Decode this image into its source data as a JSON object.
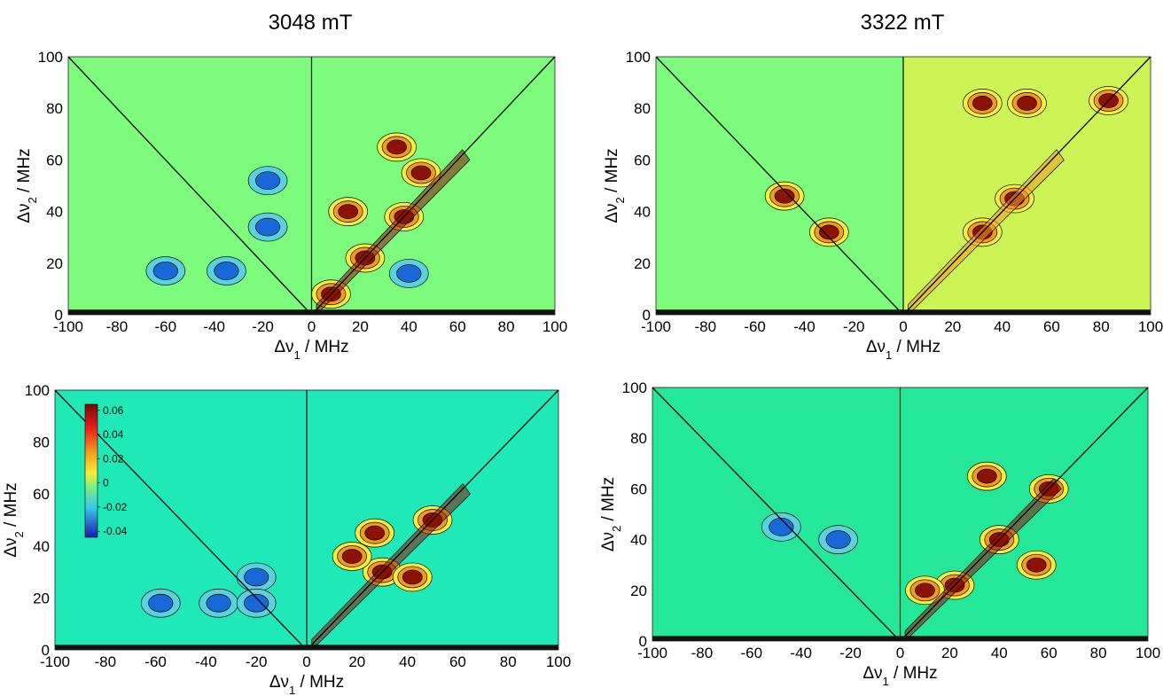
{
  "titles": {
    "left": "3048 mT",
    "right": "3322 mT"
  },
  "axis_labels": {
    "x_prefix": "Δν",
    "x_sub": "1",
    "x_suffix": " / MHz",
    "y_prefix": "Δν",
    "y_sub": "2",
    "y_suffix": " / MHz"
  },
  "colors": {
    "bg_a": "#7dfb7d",
    "bg_b": "#ccf455",
    "bg_c": "#1fe9b9",
    "bg_d": "#24e79a",
    "pos_low": "#f5ef3a",
    "pos_mid": "#f29b22",
    "pos_high": "#8c1206",
    "neg_low": "#5ad2de",
    "neg_high": "#1869d8",
    "contour": "#0a0a0a"
  },
  "chart_data": [
    {
      "id": "top-left",
      "type": "contour",
      "title": "3048 mT",
      "xlabel": "Δν1 / MHz",
      "ylabel": "Δν2 / MHz",
      "xlim": [
        -100,
        100
      ],
      "ylim": [
        0,
        100
      ],
      "xticks": [
        -100,
        -80,
        -60,
        -40,
        -20,
        0,
        20,
        40,
        60,
        80,
        100
      ],
      "yticks": [
        0,
        20,
        40,
        60,
        80,
        100
      ],
      "diagonals": true,
      "peaks": [
        {
          "x": 22,
          "y": 22,
          "sign": "positive"
        },
        {
          "x": 38,
          "y": 38,
          "sign": "positive"
        },
        {
          "x": 8,
          "y": 8,
          "sign": "positive"
        },
        {
          "x": 15,
          "y": 40,
          "sign": "positive"
        },
        {
          "x": 45,
          "y": 55,
          "sign": "positive"
        },
        {
          "x": 35,
          "y": 65,
          "sign": "positive"
        },
        {
          "x": -18,
          "y": 52,
          "sign": "negative"
        },
        {
          "x": -18,
          "y": 34,
          "sign": "negative"
        },
        {
          "x": -35,
          "y": 17,
          "sign": "negative"
        },
        {
          "x": -60,
          "y": 17,
          "sign": "negative"
        },
        {
          "x": 40,
          "y": 16,
          "sign": "negative"
        }
      ]
    },
    {
      "id": "top-right",
      "type": "contour",
      "title": "3322 mT",
      "xlabel": "Δν1 / MHz",
      "ylabel": "Δν2 / MHz",
      "xlim": [
        -100,
        100
      ],
      "ylim": [
        0,
        100
      ],
      "xticks": [
        -100,
        -80,
        -60,
        -40,
        -20,
        0,
        20,
        40,
        60,
        80,
        100
      ],
      "yticks": [
        0,
        20,
        40,
        60,
        80,
        100
      ],
      "diagonals": true,
      "peaks": [
        {
          "x": 32,
          "y": 32,
          "sign": "positive"
        },
        {
          "x": 45,
          "y": 45,
          "sign": "positive"
        },
        {
          "x": 32,
          "y": 82,
          "sign": "positive"
        },
        {
          "x": 50,
          "y": 82,
          "sign": "positive"
        },
        {
          "x": 83,
          "y": 83,
          "sign": "positive"
        },
        {
          "x": -30,
          "y": 32,
          "sign": "positive"
        },
        {
          "x": -48,
          "y": 46,
          "sign": "positive"
        }
      ]
    },
    {
      "id": "bottom-left",
      "type": "contour",
      "xlabel": "Δν1 / MHz",
      "ylabel": "Δν2 / MHz",
      "xlim": [
        -100,
        100
      ],
      "ylim": [
        0,
        100
      ],
      "xticks": [
        -100,
        -80,
        -60,
        -40,
        -20,
        0,
        20,
        40,
        60,
        80,
        100
      ],
      "yticks": [
        0,
        20,
        40,
        60,
        80,
        100
      ],
      "diagonals": true,
      "colorbar": {
        "min": -0.045,
        "max": 0.065,
        "ticks": [
          0.06,
          0.04,
          0.02,
          0,
          -0.02,
          -0.04
        ],
        "tick_labels": [
          "0.06",
          "0.04",
          "0.02",
          "0",
          "-0.02",
          "-0.04"
        ]
      },
      "peaks": [
        {
          "x": 30,
          "y": 30,
          "sign": "positive"
        },
        {
          "x": 50,
          "y": 50,
          "sign": "positive"
        },
        {
          "x": 27,
          "y": 45,
          "sign": "positive"
        },
        {
          "x": 18,
          "y": 36,
          "sign": "positive"
        },
        {
          "x": 42,
          "y": 28,
          "sign": "positive"
        },
        {
          "x": -58,
          "y": 18,
          "sign": "negative"
        },
        {
          "x": -35,
          "y": 18,
          "sign": "negative"
        },
        {
          "x": -20,
          "y": 28,
          "sign": "negative"
        },
        {
          "x": -20,
          "y": 18,
          "sign": "negative"
        }
      ]
    },
    {
      "id": "bottom-right",
      "type": "contour",
      "xlabel": "Δν1 / MHz",
      "ylabel": "Δν2 / MHz",
      "xlim": [
        -100,
        100
      ],
      "ylim": [
        0,
        100
      ],
      "xticks": [
        -100,
        -80,
        -60,
        -40,
        -20,
        0,
        20,
        40,
        60,
        80,
        100
      ],
      "yticks": [
        0,
        20,
        40,
        60,
        80,
        100
      ],
      "diagonals": true,
      "peaks": [
        {
          "x": 22,
          "y": 22,
          "sign": "positive"
        },
        {
          "x": 40,
          "y": 40,
          "sign": "positive"
        },
        {
          "x": 60,
          "y": 60,
          "sign": "positive"
        },
        {
          "x": 10,
          "y": 20,
          "sign": "positive"
        },
        {
          "x": 35,
          "y": 65,
          "sign": "positive"
        },
        {
          "x": 55,
          "y": 30,
          "sign": "positive"
        },
        {
          "x": -48,
          "y": 45,
          "sign": "negative"
        },
        {
          "x": -25,
          "y": 40,
          "sign": "negative"
        }
      ]
    }
  ]
}
